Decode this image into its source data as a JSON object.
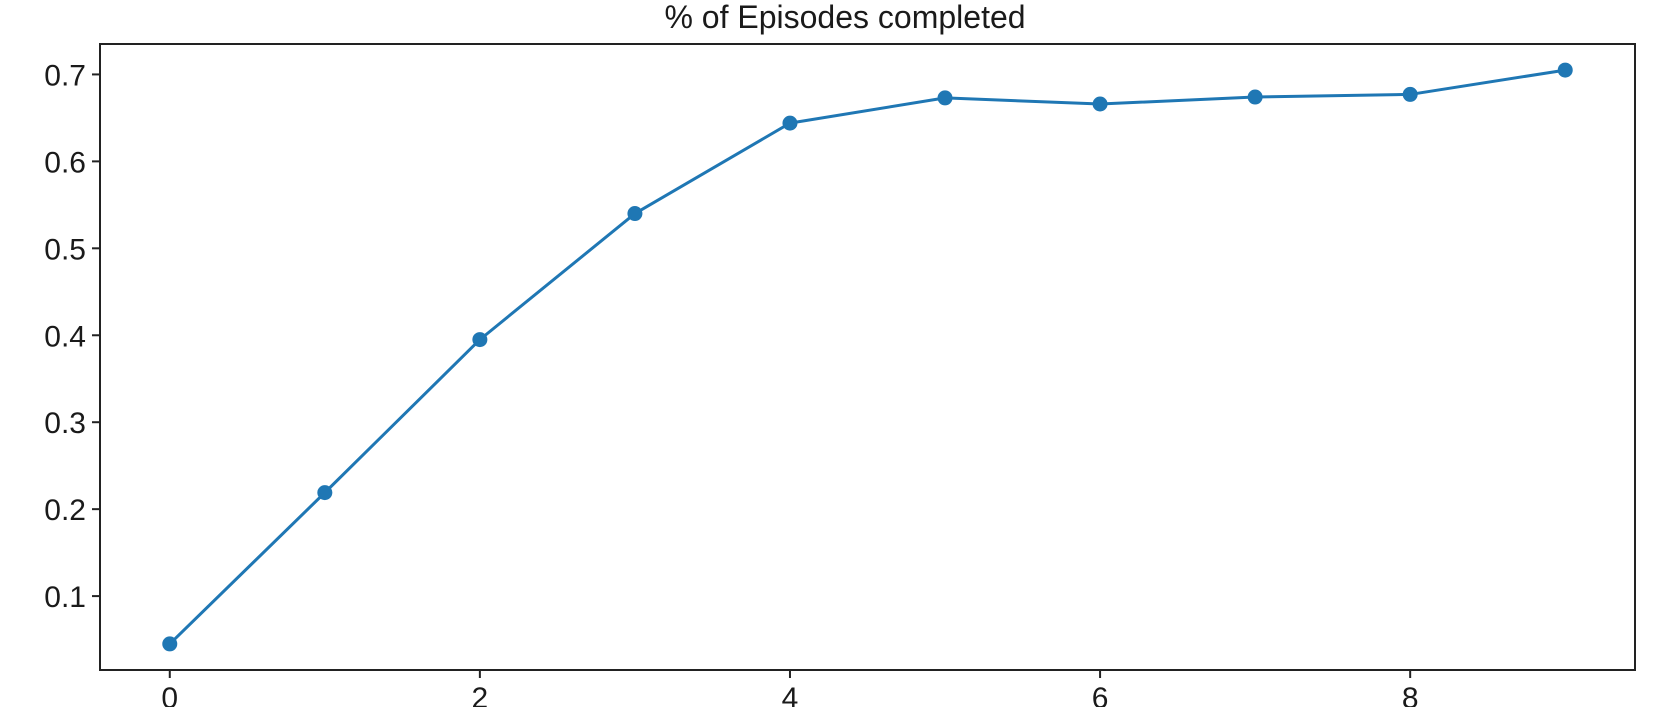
{
  "chart_data": {
    "type": "line",
    "title": "% of Episodes completed",
    "xlabel": "",
    "ylabel": "",
    "xlim": [
      -0.45,
      9.45
    ],
    "ylim": [
      0.015,
      0.735
    ],
    "xticks": [
      0,
      2,
      4,
      6,
      8
    ],
    "yticks": [
      0.1,
      0.2,
      0.3,
      0.4,
      0.5,
      0.6,
      0.7
    ],
    "grid": false,
    "series": [
      {
        "color": "#1f77b4",
        "marker": "circle",
        "x": [
          0,
          1,
          2,
          3,
          4,
          5,
          6,
          7,
          8,
          9
        ],
        "y": [
          0.045,
          0.219,
          0.395,
          0.54,
          0.644,
          0.673,
          0.666,
          0.674,
          0.677,
          0.705
        ]
      }
    ]
  }
}
